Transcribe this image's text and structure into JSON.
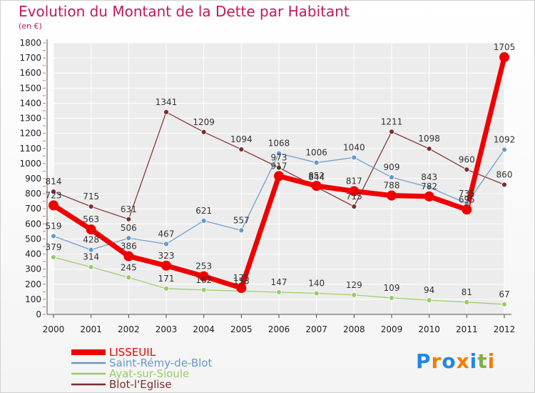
{
  "title": "Evolution du Montant de la Dette par Habitant",
  "subtitle": "(en €)",
  "logo": {
    "letters": [
      "P",
      "r",
      "o",
      "x",
      "i",
      "t",
      "i"
    ],
    "colors": [
      "#1e88e5",
      "#f57c00",
      "#1e88e5",
      "#f57c00",
      "#1e88e5",
      "#7cb342",
      "#f57c00"
    ]
  },
  "chart_data": {
    "type": "line",
    "title": "Evolution du Montant de la Dette par Habitant",
    "ylabel": "(en €)",
    "xlabel": "",
    "ylim": [
      0,
      1800
    ],
    "yticks": [
      0,
      100,
      200,
      300,
      400,
      500,
      600,
      700,
      800,
      900,
      1000,
      1100,
      1200,
      1300,
      1400,
      1500,
      1600,
      1700,
      1800
    ],
    "categories": [
      "2000",
      "2001",
      "2002",
      "2003",
      "2004",
      "2005",
      "2006",
      "2007",
      "2008",
      "2009",
      "2010",
      "2011",
      "2012"
    ],
    "grid": true,
    "legend": "bottom-left",
    "series": [
      {
        "name": "LISSEUIL",
        "color": "#ee0000",
        "width": 7,
        "marker": 7,
        "values": [
          723,
          563,
          386,
          323,
          253,
          175,
          917,
          852,
          817,
          788,
          782,
          695,
          1705
        ]
      },
      {
        "name": "Saint-Rémy-de-Blot",
        "color": "#6699cc",
        "width": 1.2,
        "marker": 3.5,
        "values": [
          519,
          428,
          506,
          467,
          621,
          557,
          1068,
          1006,
          1040,
          909,
          843,
          735,
          1092
        ]
      },
      {
        "name": "Ayat-sur-Sioule",
        "color": "#99cc66",
        "width": 1.2,
        "marker": 3.5,
        "values": [
          379,
          314,
          245,
          171,
          162,
          155,
          147,
          140,
          129,
          109,
          94,
          81,
          67
        ]
      },
      {
        "name": "Blot-l'Eglise",
        "color": "#7a2e2e",
        "width": 1.2,
        "marker": 3.5,
        "values": [
          814,
          715,
          631,
          1341,
          1209,
          1094,
          973,
          844,
          715,
          1211,
          1098,
          960,
          860
        ]
      }
    ]
  }
}
